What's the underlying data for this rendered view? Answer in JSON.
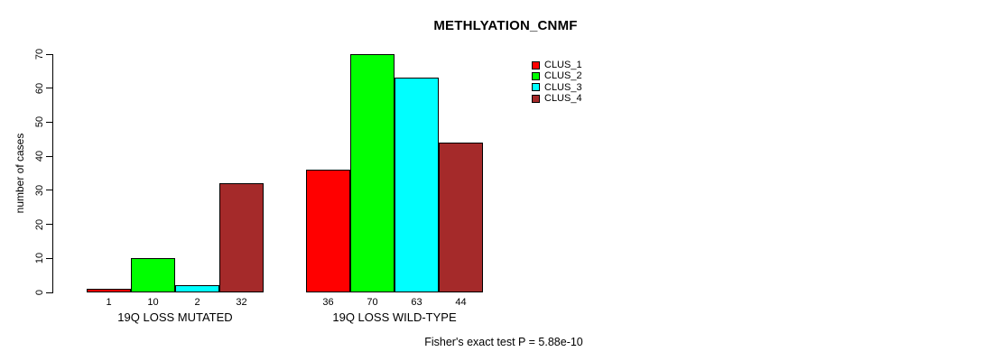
{
  "chart_data": {
    "type": "bar",
    "title": "METHLYATION_CNMF",
    "ylabel": "number of cases",
    "xlabel": "",
    "ylim": [
      0,
      70
    ],
    "yticks": [
      0,
      10,
      20,
      30,
      40,
      50,
      60,
      70
    ],
    "grid": false,
    "bar_value_labels": true,
    "legend_position": "top-right",
    "series_names": [
      "CLUS_1",
      "CLUS_2",
      "CLUS_3",
      "CLUS_4"
    ],
    "colors": [
      "#ff0000",
      "#00ff00",
      "#00ffff",
      "#a52a2a"
    ],
    "categories": [
      "19Q LOSS MUTATED",
      "19Q LOSS WILD-TYPE"
    ],
    "groups": [
      {
        "label": "19Q LOSS MUTATED",
        "values": [
          1,
          10,
          2,
          32
        ]
      },
      {
        "label": "19Q LOSS WILD-TYPE",
        "values": [
          36,
          70,
          63,
          44
        ]
      }
    ],
    "series": [
      {
        "name": "CLUS_1",
        "color": "#ff0000",
        "values": [
          1,
          36
        ]
      },
      {
        "name": "CLUS_2",
        "color": "#00ff00",
        "values": [
          10,
          70
        ]
      },
      {
        "name": "CLUS_3",
        "color": "#00ffff",
        "values": [
          2,
          63
        ]
      },
      {
        "name": "CLUS_4",
        "color": "#a52a2a",
        "values": [
          32,
          44
        ]
      }
    ],
    "annotation": "Fisher's exact test P = 5.88e-10"
  }
}
